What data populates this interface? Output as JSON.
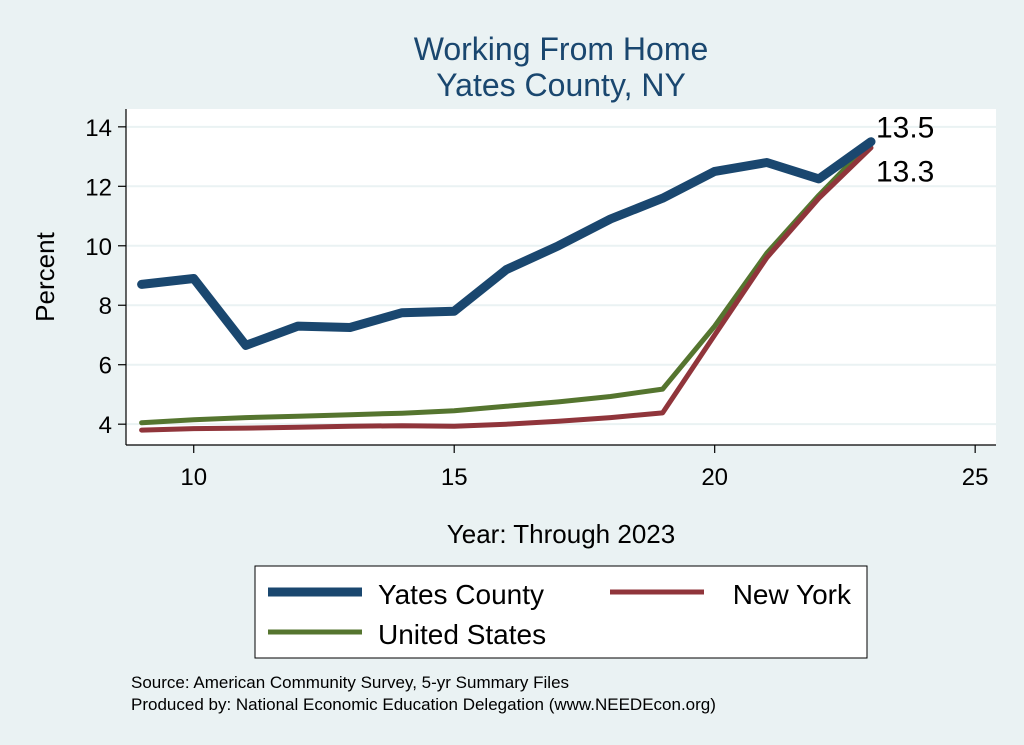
{
  "chart_data": {
    "type": "line",
    "title": "Working From Home",
    "subtitle": "Yates County, NY",
    "xlabel": "Year: Through 2023",
    "ylabel": "Percent",
    "xlim": [
      8.7,
      25.4
    ],
    "ylim": [
      3.3,
      14.6
    ],
    "xticks": [
      10,
      15,
      20,
      25
    ],
    "yticks": [
      4,
      6,
      8,
      10,
      12,
      14
    ],
    "grid": true,
    "legend_position": "bottom",
    "series": [
      {
        "name": "Yates County",
        "color": "#1a476f",
        "x": [
          9,
          10,
          11,
          12,
          13,
          14,
          15,
          16,
          17,
          18,
          19,
          20,
          21,
          22,
          23
        ],
        "values": [
          8.7,
          8.9,
          6.65,
          7.3,
          7.25,
          7.75,
          7.8,
          9.2,
          10.0,
          10.9,
          11.6,
          12.5,
          12.8,
          12.25,
          13.5
        ]
      },
      {
        "name": "New York",
        "color": "#90353b",
        "x": [
          9,
          10,
          11,
          12,
          13,
          14,
          15,
          16,
          17,
          18,
          19,
          20,
          21,
          22,
          23
        ],
        "values": [
          3.8,
          3.85,
          3.87,
          3.9,
          3.93,
          3.95,
          3.93,
          4.0,
          4.1,
          4.22,
          4.38,
          7.0,
          9.6,
          11.6,
          13.3
        ]
      },
      {
        "name": "United States",
        "color": "#55752f",
        "x": [
          9,
          10,
          11,
          12,
          13,
          14,
          15,
          16,
          17,
          18,
          19,
          20,
          21,
          22,
          23
        ],
        "values": [
          4.05,
          4.15,
          4.22,
          4.27,
          4.32,
          4.37,
          4.45,
          4.6,
          4.75,
          4.93,
          5.18,
          7.3,
          9.75,
          11.7,
          13.5
        ]
      }
    ],
    "end_labels": [
      {
        "text": "13.5",
        "x": 23,
        "value": 13.5
      },
      {
        "text": "13.3",
        "x": 23,
        "value": 13.3
      }
    ],
    "notes": [
      "Source: American Community Survey, 5-yr Summary Files",
      "Produced by: National Economic Education Delegation (www.NEEDEcon.org)"
    ]
  }
}
